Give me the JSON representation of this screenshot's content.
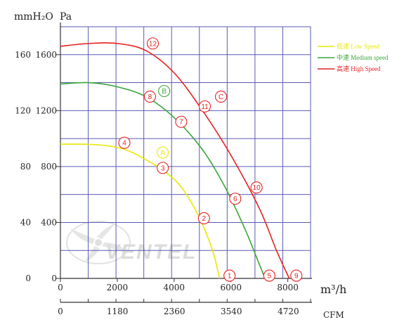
{
  "chart_data": {
    "type": "line",
    "title": "",
    "x_unit_label": "m³/h",
    "x_ticks": [
      0,
      2000,
      4000,
      6000,
      8000
    ],
    "x_range": [
      0,
      8800
    ],
    "cfm_unit_label": "CFM",
    "cfm_ticks": [
      0,
      1180,
      2360,
      3540,
      4720
    ],
    "y_unit_label_left": "mmH₂O",
    "y_unit_label_right": "Pa",
    "y_ticks_mmh2o": [
      0,
      40,
      80,
      120,
      160
    ],
    "y_ticks_pa": [
      0,
      400,
      800,
      1200,
      1600
    ],
    "y_range_pa": [
      0,
      1800
    ],
    "grid": true,
    "legend_position": "right",
    "series": [
      {
        "name": "低速 Low Speed",
        "color": "#e8e800",
        "points": [
          [
            0,
            960
          ],
          [
            800,
            960
          ],
          [
            1600,
            950
          ],
          [
            2300,
            920
          ],
          [
            3000,
            850
          ],
          [
            3700,
            760
          ],
          [
            4300,
            640
          ],
          [
            4900,
            430
          ],
          [
            5350,
            200
          ],
          [
            5600,
            0
          ]
        ]
      },
      {
        "name": "中速 Medium speed",
        "color": "#3aa63a",
        "points": [
          [
            0,
            1390
          ],
          [
            1000,
            1400
          ],
          [
            2000,
            1370
          ],
          [
            3000,
            1300
          ],
          [
            4000,
            1150
          ],
          [
            5000,
            920
          ],
          [
            5800,
            650
          ],
          [
            6500,
            350
          ],
          [
            7000,
            100
          ],
          [
            7200,
            0
          ]
        ]
      },
      {
        "name": "高速 High Speed",
        "color": "#e82020",
        "points": [
          [
            0,
            1660
          ],
          [
            1000,
            1680
          ],
          [
            2000,
            1680
          ],
          [
            3000,
            1630
          ],
          [
            4000,
            1470
          ],
          [
            5000,
            1200
          ],
          [
            6000,
            880
          ],
          [
            7000,
            500
          ],
          [
            7600,
            200
          ],
          [
            8050,
            0
          ]
        ]
      }
    ],
    "markers": [
      {
        "label": "1",
        "x": 5950,
        "y": 20,
        "color": "#e82020"
      },
      {
        "label": "2",
        "x": 5050,
        "y": 430,
        "color": "#e82020"
      },
      {
        "label": "3",
        "x": 3600,
        "y": 790,
        "color": "#e82020"
      },
      {
        "label": "4",
        "x": 2250,
        "y": 970,
        "color": "#e82020"
      },
      {
        "label": "5",
        "x": 7350,
        "y": 20,
        "color": "#e82020"
      },
      {
        "label": "6",
        "x": 6150,
        "y": 570,
        "color": "#e82020"
      },
      {
        "label": "7",
        "x": 4250,
        "y": 1120,
        "color": "#e82020"
      },
      {
        "label": "8",
        "x": 3150,
        "y": 1300,
        "color": "#e82020"
      },
      {
        "label": "9",
        "x": 8300,
        "y": 20,
        "color": "#e82020"
      },
      {
        "label": "10",
        "x": 6900,
        "y": 650,
        "color": "#e82020"
      },
      {
        "label": "11",
        "x": 5080,
        "y": 1230,
        "color": "#e82020"
      },
      {
        "label": "12",
        "x": 3250,
        "y": 1680,
        "color": "#e82020"
      },
      {
        "label": "A",
        "x": 3600,
        "y": 900,
        "color": "#e8e800"
      },
      {
        "label": "B",
        "x": 3650,
        "y": 1340,
        "color": "#3aa63a"
      },
      {
        "label": "C",
        "x": 5650,
        "y": 1300,
        "color": "#e82020"
      }
    ],
    "watermark": "VENTEL"
  }
}
